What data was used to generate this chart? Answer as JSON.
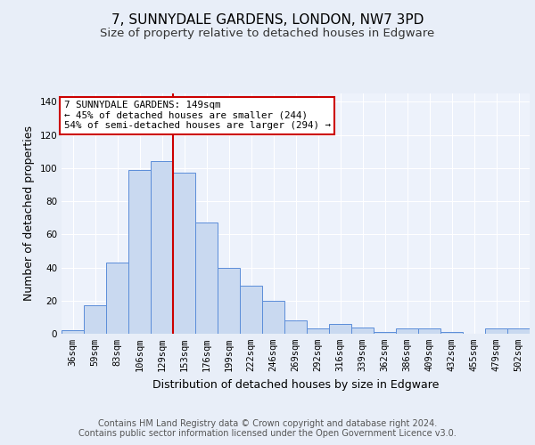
{
  "title": "7, SUNNYDALE GARDENS, LONDON, NW7 3PD",
  "subtitle": "Size of property relative to detached houses in Edgware",
  "xlabel": "Distribution of detached houses by size in Edgware",
  "ylabel": "Number of detached properties",
  "bar_labels": [
    "36sqm",
    "59sqm",
    "83sqm",
    "106sqm",
    "129sqm",
    "153sqm",
    "176sqm",
    "199sqm",
    "222sqm",
    "246sqm",
    "269sqm",
    "292sqm",
    "316sqm",
    "339sqm",
    "362sqm",
    "386sqm",
    "409sqm",
    "432sqm",
    "455sqm",
    "479sqm",
    "502sqm"
  ],
  "bar_values": [
    2,
    17,
    43,
    99,
    104,
    97,
    67,
    40,
    29,
    20,
    8,
    3,
    6,
    4,
    1,
    3,
    3,
    1,
    0,
    3,
    3
  ],
  "bar_color": "#c9d9f0",
  "bar_edge_color": "#5b8dd9",
  "vline_x": 4.5,
  "vline_color": "#cc0000",
  "annotation_text": "7 SUNNYDALE GARDENS: 149sqm\n← 45% of detached houses are smaller (244)\n54% of semi-detached houses are larger (294) →",
  "annotation_box_color": "#ffffff",
  "annotation_box_edge_color": "#cc0000",
  "ylim": [
    0,
    145
  ],
  "yticks": [
    0,
    20,
    40,
    60,
    80,
    100,
    120,
    140
  ],
  "footer_line1": "Contains HM Land Registry data © Crown copyright and database right 2024.",
  "footer_line2": "Contains public sector information licensed under the Open Government Licence v3.0.",
  "bg_color": "#e8eef8",
  "plot_bg_color": "#edf2fb",
  "title_fontsize": 11,
  "subtitle_fontsize": 9.5,
  "tick_fontsize": 7.5,
  "axis_label_fontsize": 9,
  "footer_fontsize": 7
}
